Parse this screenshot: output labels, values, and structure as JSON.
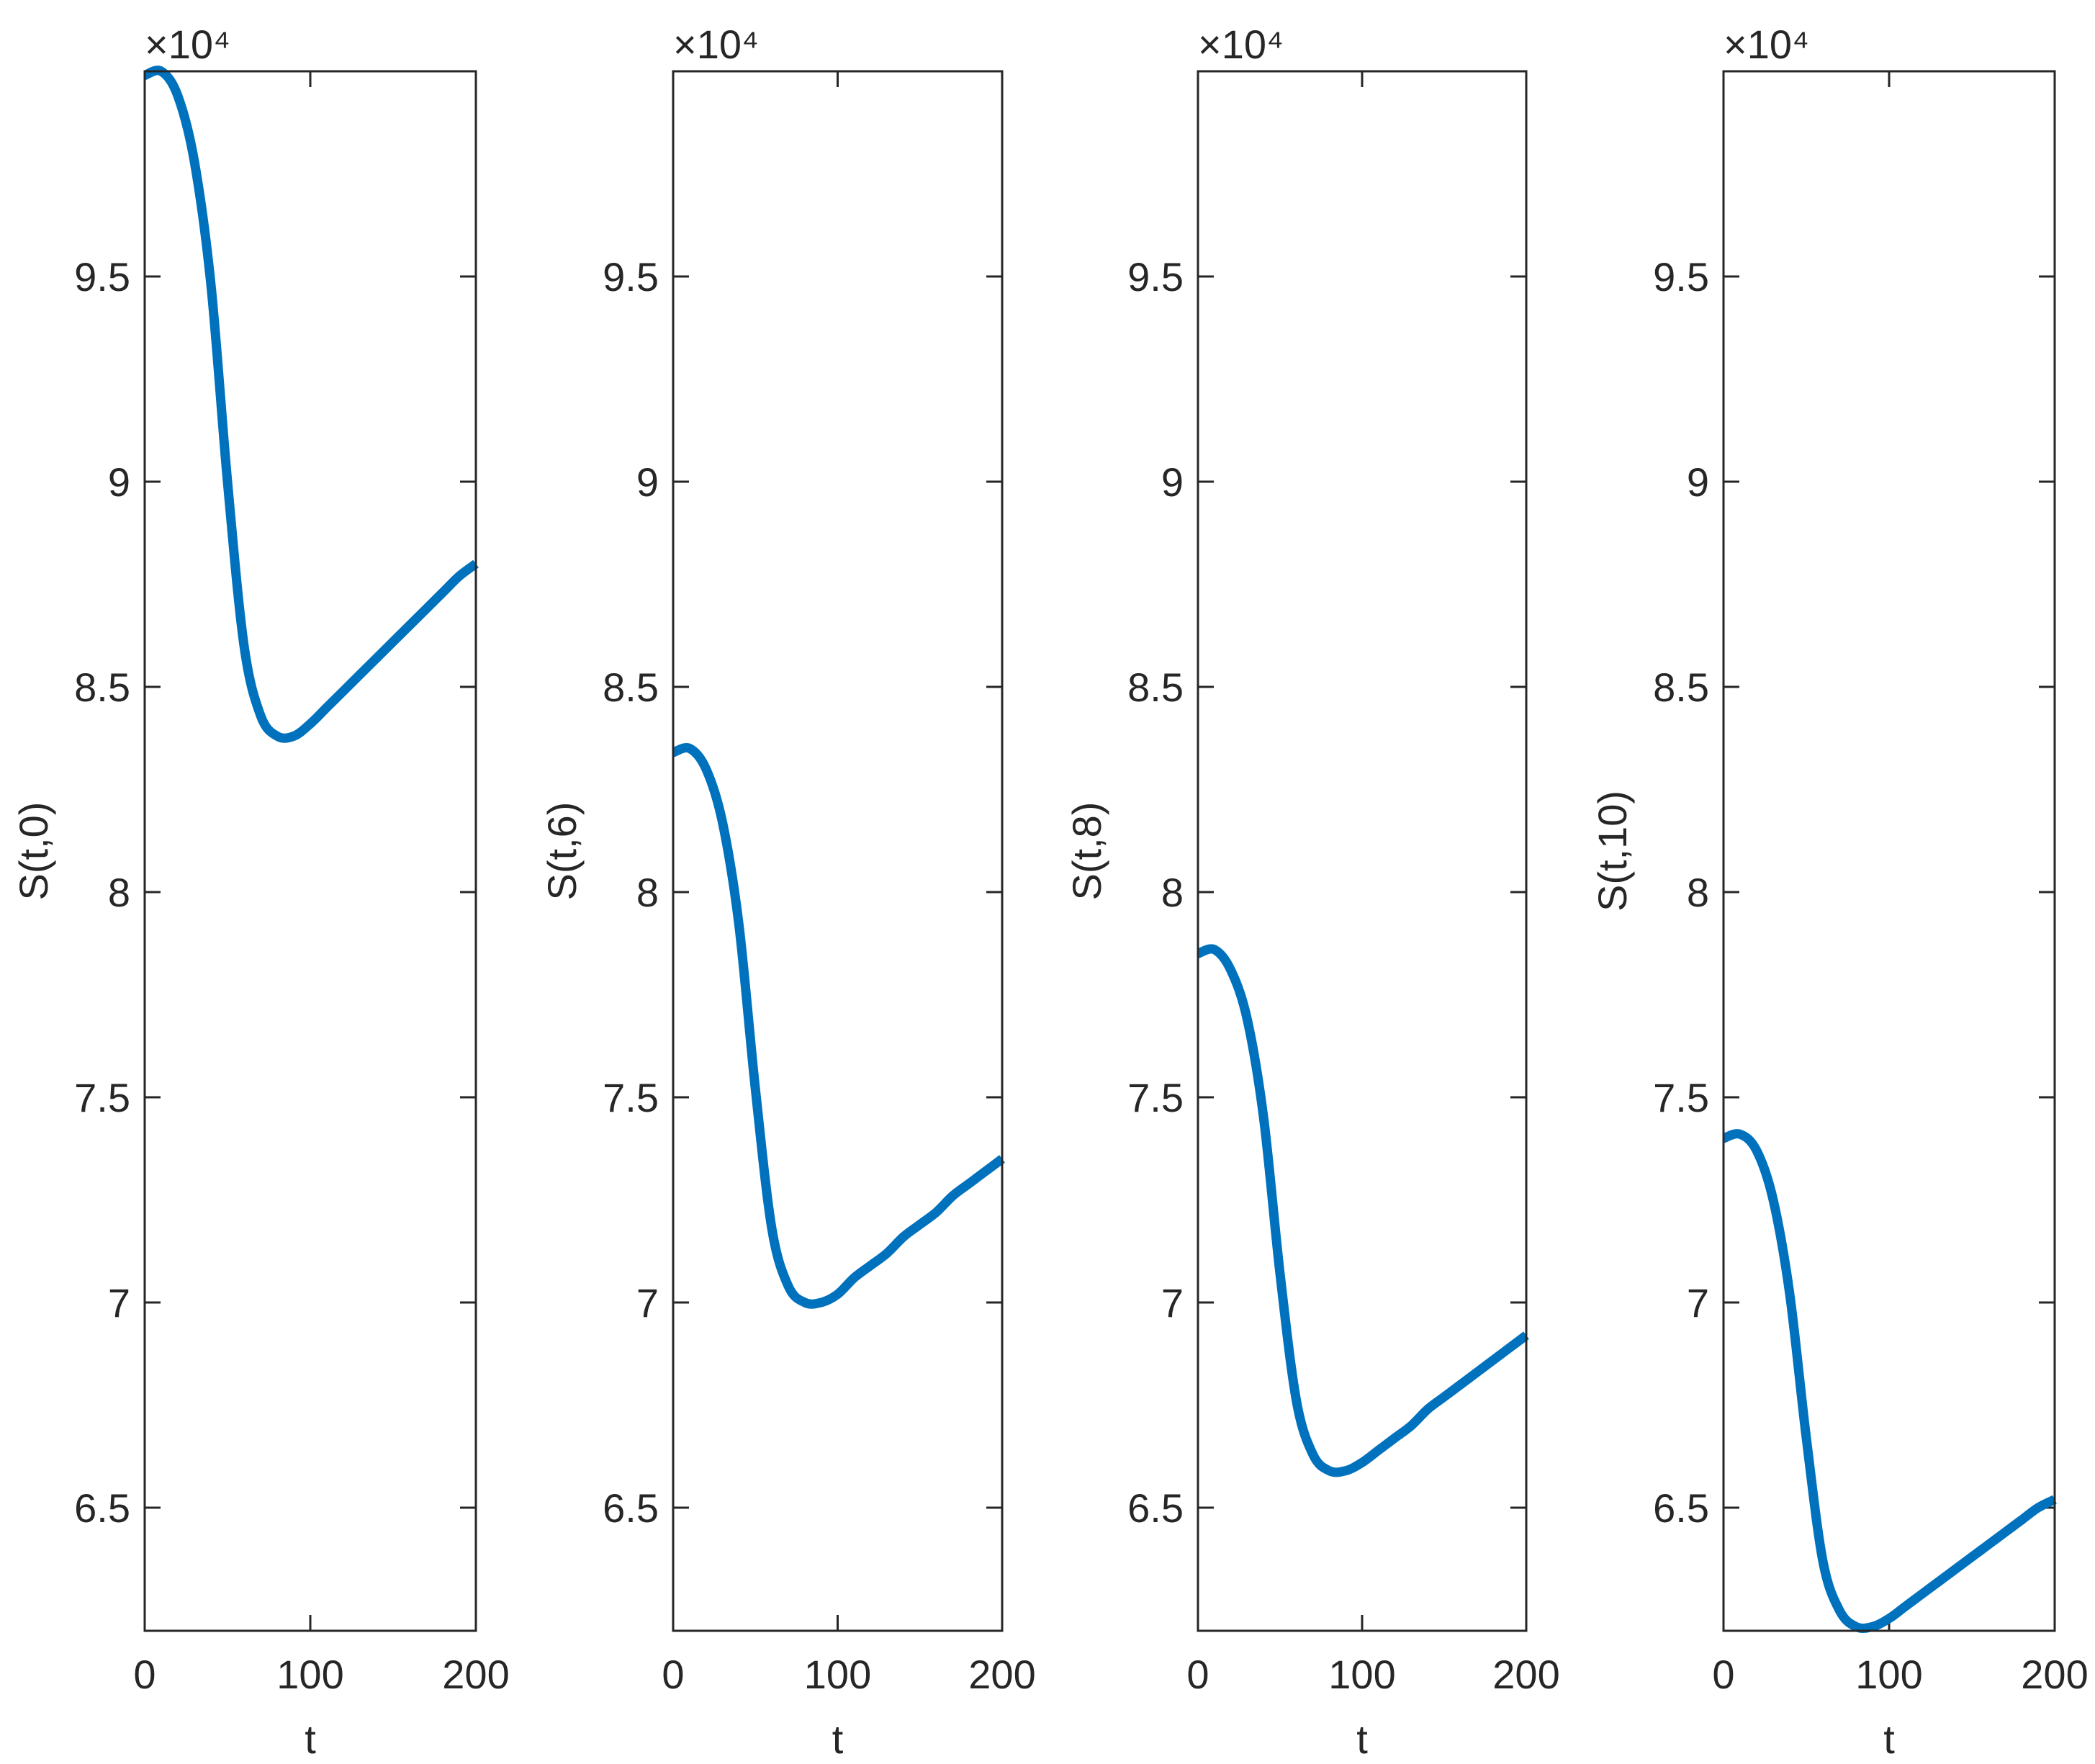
{
  "chart_data": [
    {
      "type": "line",
      "x_label": "t",
      "y_label": "S(t,0)",
      "y_multiplier": "×10⁴",
      "x": [
        0,
        10,
        20,
        30,
        40,
        50,
        60,
        70,
        80,
        90,
        100,
        110,
        120,
        130,
        140,
        150,
        160,
        170,
        180,
        190,
        200
      ],
      "values": [
        99900,
        100000,
        99400,
        97800,
        94800,
        90000,
        86000,
        84300,
        83800,
        83800,
        84100,
        84500,
        84900,
        85300,
        85700,
        86100,
        86500,
        86900,
        87300,
        87700,
        88000
      ],
      "color": "#0072bd",
      "xlim": [
        0,
        200
      ],
      "xticks": [
        0,
        100,
        200
      ],
      "ylim": [
        62000,
        100000
      ],
      "yticks": [
        {
          "value": 65000,
          "label": "6.5"
        },
        {
          "value": 70000,
          "label": "7"
        },
        {
          "value": 75000,
          "label": "7.5"
        },
        {
          "value": 80000,
          "label": "8"
        },
        {
          "value": 85000,
          "label": "8.5"
        },
        {
          "value": 90000,
          "label": "9"
        },
        {
          "value": 95000,
          "label": "9.5"
        }
      ]
    },
    {
      "type": "line",
      "x_label": "t",
      "y_label": "S(t,6)",
      "y_multiplier": "×10⁴",
      "x": [
        0,
        10,
        20,
        30,
        40,
        50,
        60,
        70,
        80,
        90,
        100,
        110,
        120,
        130,
        140,
        150,
        160,
        170,
        180,
        190,
        200
      ],
      "values": [
        83400,
        83500,
        83000,
        81700,
        79200,
        75200,
        71800,
        70400,
        70000,
        70000,
        70200,
        70600,
        70900,
        71200,
        71600,
        71900,
        72200,
        72600,
        72900,
        73200,
        73500
      ],
      "color": "#0072bd",
      "xlim": [
        0,
        200
      ],
      "xticks": [
        0,
        100,
        200
      ],
      "ylim": [
        62000,
        100000
      ],
      "yticks": [
        {
          "value": 65000,
          "label": "6.5"
        },
        {
          "value": 70000,
          "label": "7"
        },
        {
          "value": 75000,
          "label": "7.5"
        },
        {
          "value": 80000,
          "label": "8"
        },
        {
          "value": 85000,
          "label": "8.5"
        },
        {
          "value": 90000,
          "label": "9"
        },
        {
          "value": 95000,
          "label": "9.5"
        }
      ]
    },
    {
      "type": "line",
      "x_label": "t",
      "y_label": "S(t,8)",
      "y_multiplier": "×10⁴",
      "x": [
        0,
        10,
        20,
        30,
        40,
        50,
        60,
        70,
        80,
        90,
        100,
        110,
        120,
        130,
        140,
        150,
        160,
        170,
        180,
        190,
        200
      ],
      "values": [
        78500,
        78600,
        78100,
        76900,
        74500,
        70700,
        67600,
        66300,
        65900,
        65900,
        66100,
        66400,
        66700,
        67000,
        67400,
        67700,
        68000,
        68300,
        68600,
        68900,
        69200
      ],
      "color": "#0072bd",
      "xlim": [
        0,
        200
      ],
      "xticks": [
        0,
        100,
        200
      ],
      "ylim": [
        62000,
        100000
      ],
      "yticks": [
        {
          "value": 65000,
          "label": "6.5"
        },
        {
          "value": 70000,
          "label": "7"
        },
        {
          "value": 75000,
          "label": "7.5"
        },
        {
          "value": 80000,
          "label": "8"
        },
        {
          "value": 85000,
          "label": "8.5"
        },
        {
          "value": 90000,
          "label": "9"
        },
        {
          "value": 95000,
          "label": "9.5"
        }
      ]
    },
    {
      "type": "line",
      "x_label": "t",
      "y_label": "S(t,10)",
      "y_multiplier": "×10⁴",
      "x": [
        0,
        10,
        20,
        30,
        40,
        50,
        60,
        70,
        80,
        90,
        100,
        110,
        120,
        130,
        140,
        150,
        160,
        170,
        180,
        190,
        200
      ],
      "values": [
        74000,
        74100,
        73700,
        72500,
        70200,
        66700,
        63700,
        62500,
        62100,
        62100,
        62300,
        62600,
        62900,
        63200,
        63500,
        63800,
        64100,
        64400,
        64700,
        65000,
        65200
      ],
      "color": "#0072bd",
      "xlim": [
        0,
        200
      ],
      "xticks": [
        0,
        100,
        200
      ],
      "ylim": [
        62000,
        100000
      ],
      "yticks": [
        {
          "value": 65000,
          "label": "6.5"
        },
        {
          "value": 70000,
          "label": "7"
        },
        {
          "value": 75000,
          "label": "7.5"
        },
        {
          "value": 80000,
          "label": "8"
        },
        {
          "value": 85000,
          "label": "8.5"
        },
        {
          "value": 90000,
          "label": "9"
        },
        {
          "value": 95000,
          "label": "9.5"
        }
      ]
    }
  ]
}
